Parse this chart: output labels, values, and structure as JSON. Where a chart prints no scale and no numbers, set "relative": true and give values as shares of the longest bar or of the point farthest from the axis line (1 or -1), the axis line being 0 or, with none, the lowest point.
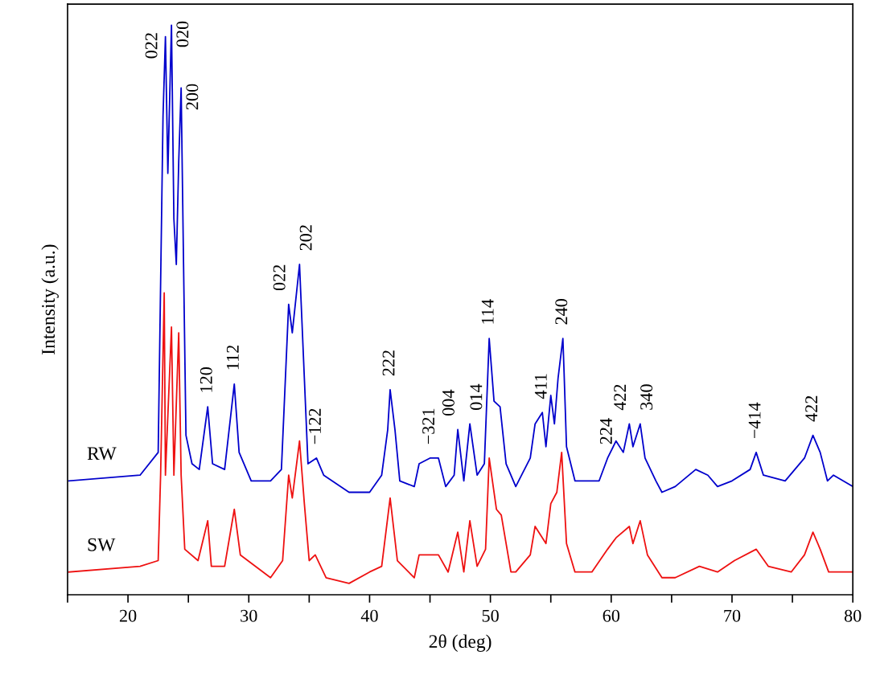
{
  "chart_data": {
    "type": "line",
    "relative": true,
    "xlabel": "2θ (deg)",
    "ylabel": "Intensity (a.u.)",
    "xlim": [
      15,
      80
    ],
    "xticks": [
      {
        "value": 15,
        "label": null
      },
      20,
      {
        "value": 25,
        "label": null
      },
      30,
      {
        "value": 35,
        "label": null
      },
      40,
      {
        "value": 45,
        "label": null
      },
      50,
      {
        "value": 55,
        "label": null
      },
      60,
      {
        "value": 65,
        "label": null
      },
      70,
      {
        "value": 75,
        "label": null
      },
      80
    ],
    "tick_labels": "x",
    "grid": false,
    "legend": false,
    "marker": "none",
    "line_style": "solid",
    "series": [
      {
        "name": "RW",
        "color": "#0000cc",
        "x": [
          15.1,
          21.0,
          22.5,
          22.9,
          23.1,
          23.3,
          23.6,
          23.8,
          24.0,
          24.2,
          24.4,
          24.6,
          24.8,
          25.3,
          25.9,
          26.6,
          27.0,
          28.0,
          28.8,
          29.2,
          30.2,
          31.8,
          32.7,
          33.3,
          33.6,
          34.2,
          34.6,
          34.9,
          35.6,
          36.2,
          38.3,
          40.0,
          41.0,
          41.5,
          41.7,
          42.1,
          42.5,
          43.7,
          44.1,
          45.0,
          45.7,
          46.3,
          47.0,
          47.3,
          47.8,
          48.3,
          48.9,
          49.5,
          49.9,
          50.3,
          50.8,
          51.3,
          52.1,
          53.3,
          53.7,
          54.3,
          54.6,
          55.0,
          55.3,
          55.6,
          56.0,
          56.1,
          56.3,
          57.0,
          58.4,
          59.0,
          59.7,
          60.4,
          61.0,
          61.5,
          61.8,
          62.4,
          62.8,
          63.7,
          64.2,
          65.3,
          67.0,
          68.0,
          68.8,
          70.0,
          71.5,
          72.0,
          72.6,
          74.4,
          76.0,
          76.7,
          77.3,
          77.9,
          78.4,
          80.0
        ],
        "values": [
          0.2,
          0.21,
          0.25,
          0.84,
          0.98,
          0.74,
          1.0,
          0.66,
          0.58,
          0.76,
          0.89,
          0.58,
          0.28,
          0.23,
          0.22,
          0.33,
          0.23,
          0.22,
          0.37,
          0.25,
          0.2,
          0.2,
          0.22,
          0.51,
          0.46,
          0.58,
          0.38,
          0.23,
          0.24,
          0.21,
          0.18,
          0.18,
          0.21,
          0.29,
          0.36,
          0.29,
          0.2,
          0.19,
          0.23,
          0.24,
          0.24,
          0.19,
          0.21,
          0.29,
          0.2,
          0.3,
          0.21,
          0.23,
          0.45,
          0.34,
          0.33,
          0.23,
          0.19,
          0.24,
          0.3,
          0.32,
          0.26,
          0.35,
          0.3,
          0.38,
          0.45,
          0.39,
          0.26,
          0.2,
          0.2,
          0.2,
          0.24,
          0.27,
          0.25,
          0.3,
          0.26,
          0.3,
          0.24,
          0.2,
          0.18,
          0.19,
          0.22,
          0.21,
          0.19,
          0.2,
          0.22,
          0.25,
          0.21,
          0.2,
          0.24,
          0.28,
          0.25,
          0.2,
          0.21,
          0.19
        ]
      },
      {
        "name": "SW",
        "color": "#ee1111",
        "x": [
          15.1,
          21.0,
          22.5,
          22.7,
          23.0,
          23.1,
          23.6,
          23.8,
          24.2,
          24.4,
          24.7,
          25.8,
          26.6,
          26.9,
          28.0,
          28.8,
          29.3,
          31.8,
          32.8,
          33.3,
          33.6,
          34.2,
          34.6,
          35.0,
          35.5,
          36.4,
          38.3,
          40.0,
          41.0,
          41.7,
          42.3,
          43.7,
          44.1,
          45.7,
          46.5,
          47.3,
          47.8,
          48.3,
          48.9,
          49.6,
          49.9,
          50.5,
          50.9,
          51.7,
          52.1,
          53.3,
          53.7,
          54.6,
          55.0,
          55.5,
          55.9,
          56.3,
          57.0,
          58.4,
          59.7,
          60.4,
          61.5,
          61.8,
          62.4,
          63.0,
          64.2,
          65.3,
          67.3,
          68.8,
          70.2,
          72.0,
          73.0,
          74.9,
          76.0,
          76.7,
          77.3,
          78.0,
          80.0
        ],
        "values": [
          0.04,
          0.05,
          0.06,
          0.21,
          0.53,
          0.21,
          0.47,
          0.21,
          0.46,
          0.21,
          0.08,
          0.06,
          0.13,
          0.05,
          0.05,
          0.15,
          0.07,
          0.03,
          0.06,
          0.21,
          0.17,
          0.27,
          0.16,
          0.06,
          0.07,
          0.03,
          0.02,
          0.04,
          0.05,
          0.17,
          0.06,
          0.03,
          0.07,
          0.07,
          0.04,
          0.11,
          0.04,
          0.13,
          0.05,
          0.08,
          0.24,
          0.15,
          0.14,
          0.04,
          0.04,
          0.07,
          0.12,
          0.09,
          0.16,
          0.18,
          0.25,
          0.09,
          0.04,
          0.04,
          0.08,
          0.1,
          0.12,
          0.09,
          0.13,
          0.07,
          0.03,
          0.03,
          0.05,
          0.04,
          0.06,
          0.08,
          0.05,
          0.04,
          0.07,
          0.11,
          0.08,
          0.04,
          0.04
        ]
      }
    ],
    "annotations": [
      {
        "text": "022",
        "x": 23.1,
        "y": 0.98
      },
      {
        "text": "020",
        "x": 23.6,
        "y": 1.0
      },
      {
        "text": "200",
        "x": 24.4,
        "y": 0.89
      },
      {
        "text": "120",
        "x": 26.6,
        "y": 0.33
      },
      {
        "text": "112",
        "x": 28.8,
        "y": 0.37
      },
      {
        "text": "022",
        "x": 33.3,
        "y": 0.51
      },
      {
        "text": "202",
        "x": 34.2,
        "y": 0.58
      },
      {
        "text": "−122",
        "x": 35.6,
        "y": 0.24
      },
      {
        "text": "222",
        "x": 41.7,
        "y": 0.36
      },
      {
        "text": "−321",
        "x": 45.0,
        "y": 0.24
      },
      {
        "text": "004",
        "x": 47.3,
        "y": 0.29
      },
      {
        "text": "014",
        "x": 48.3,
        "y": 0.3
      },
      {
        "text": "114",
        "x": 49.9,
        "y": 0.45
      },
      {
        "text": "411",
        "x": 54.3,
        "y": 0.32
      },
      {
        "text": "240",
        "x": 56.0,
        "y": 0.45
      },
      {
        "text": "224",
        "x": 59.7,
        "y": 0.24
      },
      {
        "text": "422",
        "x": 61.5,
        "y": 0.3
      },
      {
        "text": "340",
        "x": 62.4,
        "y": 0.3
      },
      {
        "text": "−414",
        "x": 72.0,
        "y": 0.25
      },
      {
        "text": "422",
        "x": 76.7,
        "y": 0.28
      }
    ]
  }
}
